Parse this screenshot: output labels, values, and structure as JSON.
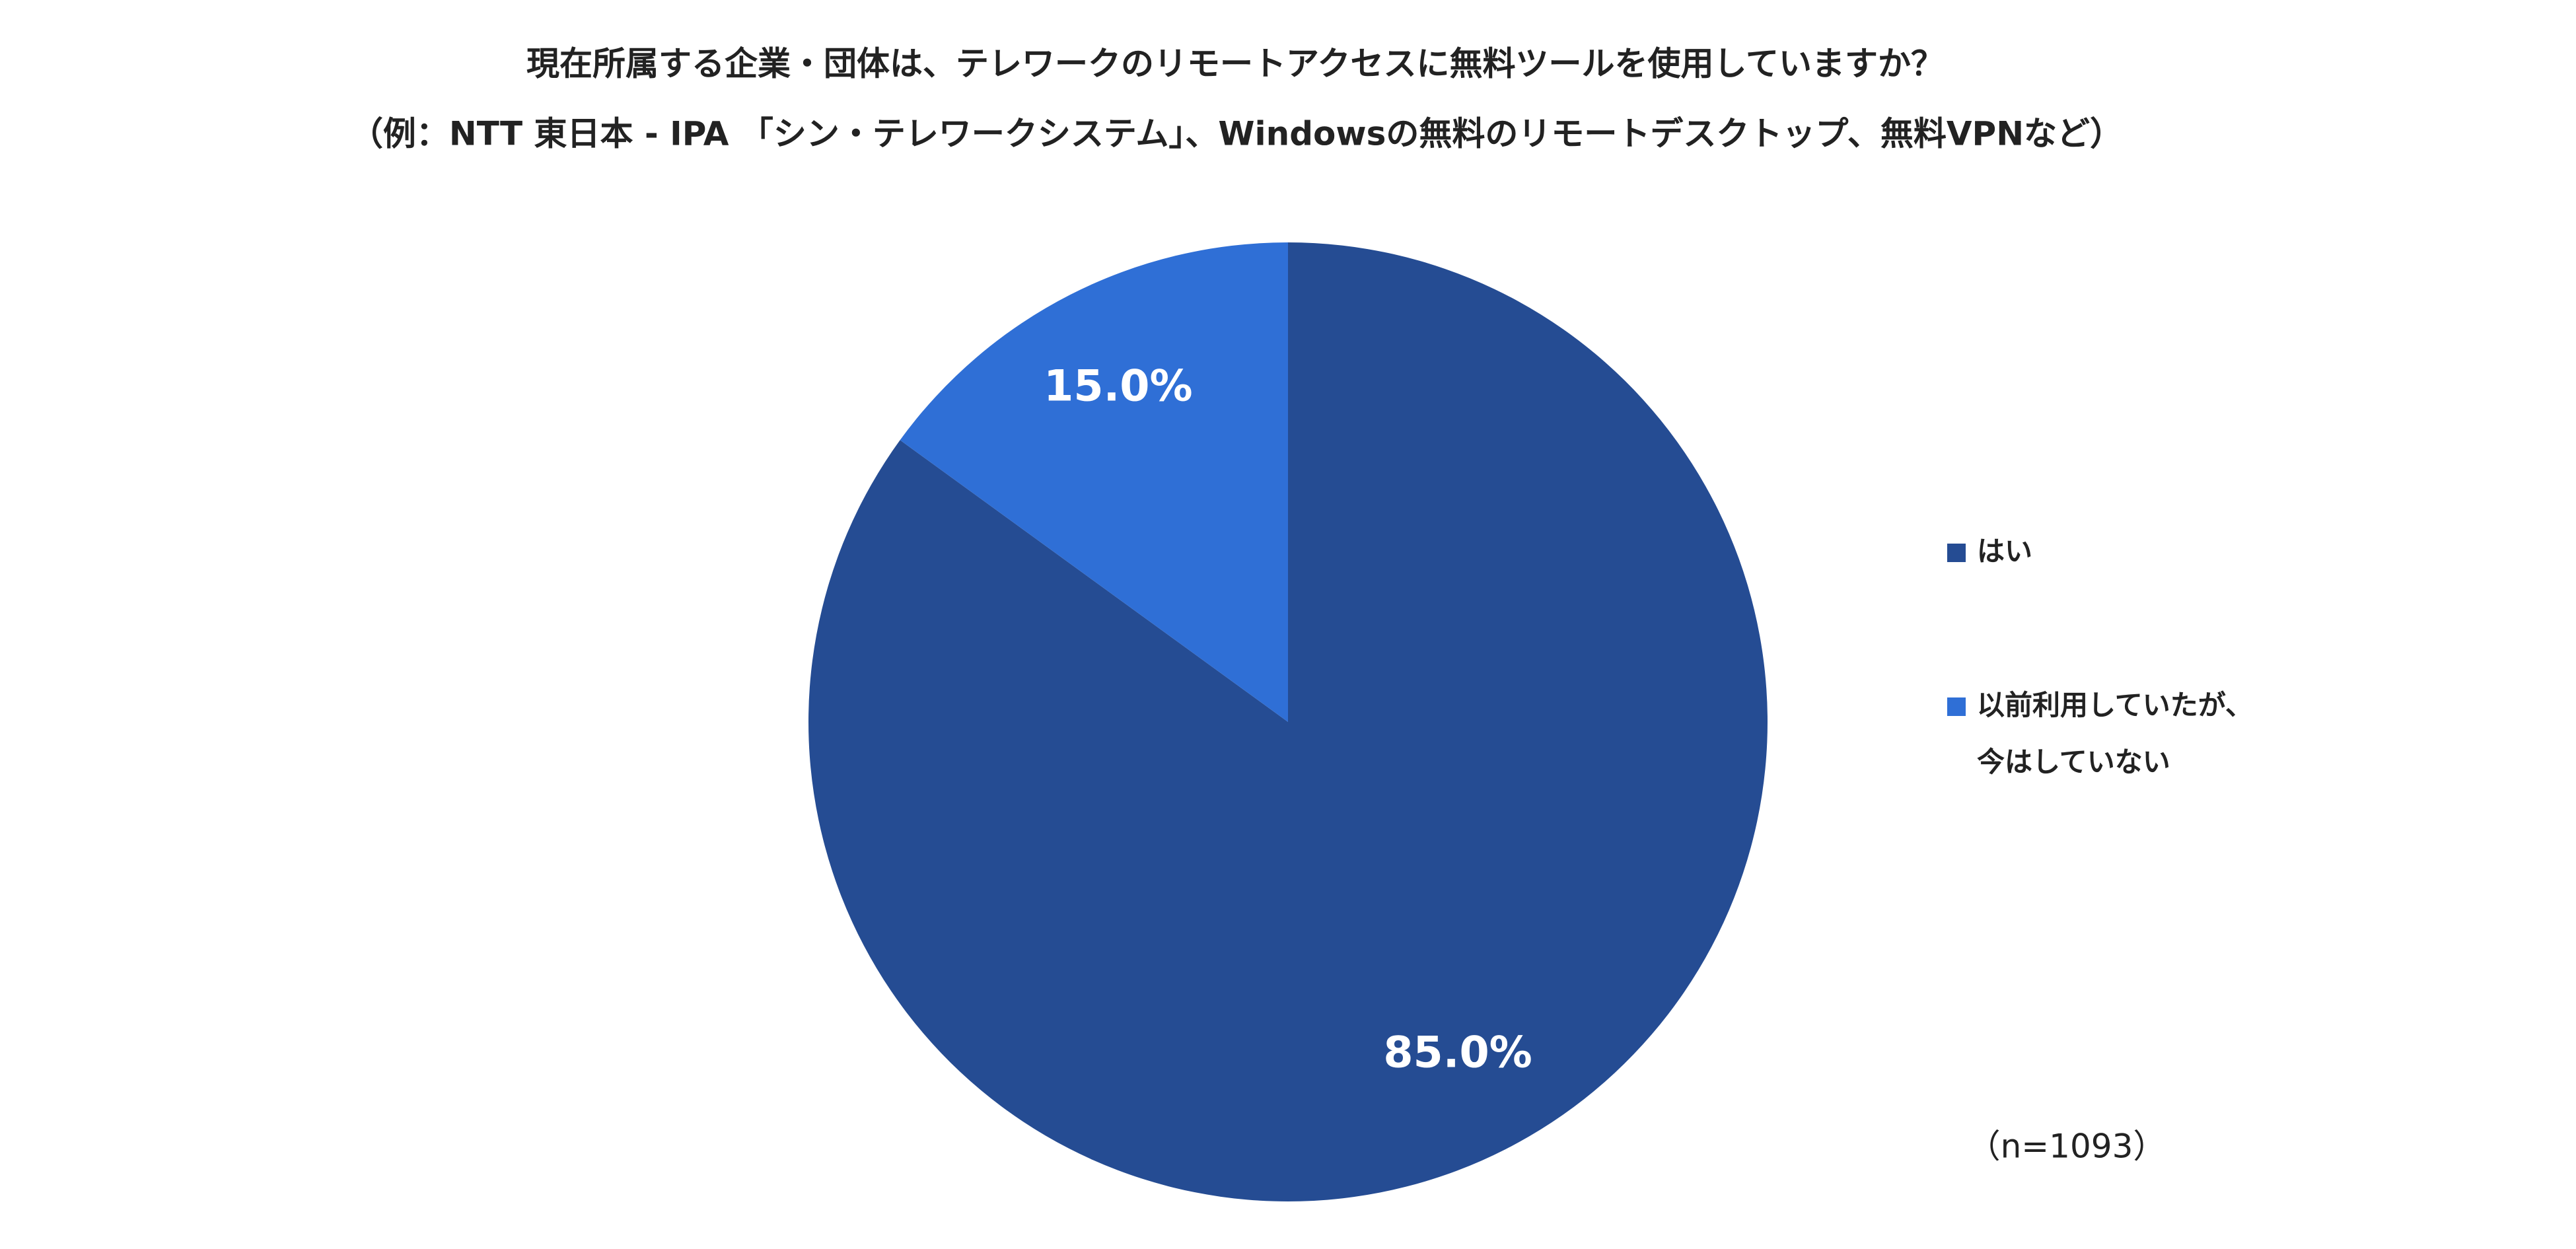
{
  "chart_data": {
    "type": "pie",
    "title": "現在所属する企業・団体は、テレワークのリモートアクセスに無料ツールを使用していますか？",
    "subtitle": "（例：NTT 東日本 - IPA 「シン・テレワークシステム」、Windowsの無料のリモートデスクトップ、無料VPNなど）",
    "categories": [
      "はい",
      "以前利用していたが、\n今はしていない"
    ],
    "values": [
      85,
      15
    ],
    "value_labels": [
      "85.0%",
      "15.0%"
    ],
    "colors": [
      "#254c93",
      "#2f6fd6"
    ],
    "annotation": "（n=1093）"
  }
}
